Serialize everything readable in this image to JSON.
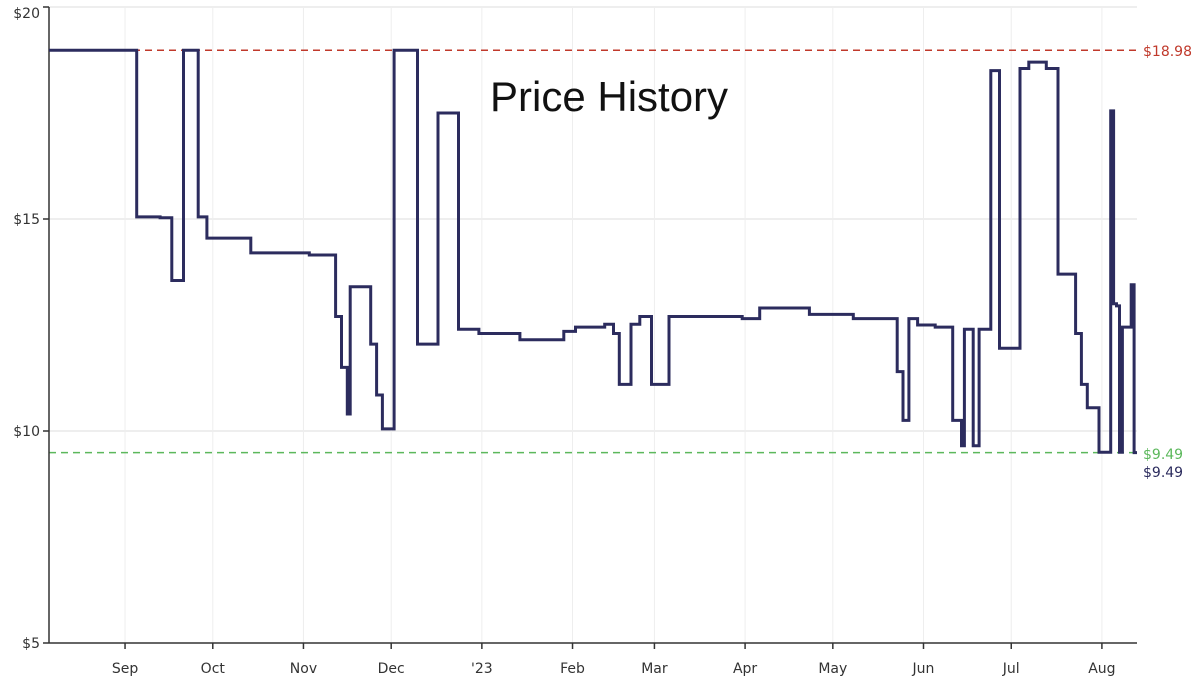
{
  "chart_data": {
    "type": "line",
    "title": "Price History",
    "step": true,
    "ylim": [
      5,
      20
    ],
    "xlim": [
      "2022-08-06",
      "2023-08-13"
    ],
    "y_ticks": [
      {
        "value": 5,
        "label": "$5"
      },
      {
        "value": 10,
        "label": "$10"
      },
      {
        "value": 15,
        "label": "$15"
      },
      {
        "value": 20,
        "label": "$20"
      }
    ],
    "x_ticks": [
      {
        "date": "2022-09-01",
        "label": "Sep"
      },
      {
        "date": "2022-10-01",
        "label": "Oct"
      },
      {
        "date": "2022-11-01",
        "label": "Nov"
      },
      {
        "date": "2022-12-01",
        "label": "Dec"
      },
      {
        "date": "2023-01-01",
        "label": "'23"
      },
      {
        "date": "2023-02-01",
        "label": "Feb"
      },
      {
        "date": "2023-03-01",
        "label": "Mar"
      },
      {
        "date": "2023-04-01",
        "label": "Apr"
      },
      {
        "date": "2023-05-01",
        "label": "May"
      },
      {
        "date": "2023-06-01",
        "label": "Jun"
      },
      {
        "date": "2023-07-01",
        "label": "Jul"
      },
      {
        "date": "2023-08-01",
        "label": "Aug"
      }
    ],
    "grid": true,
    "reference_lines": [
      {
        "value": 18.98,
        "label": "$18.98",
        "color": "#c0392b"
      },
      {
        "value": 9.49,
        "label": "$9.49",
        "color": "#5cb85c"
      }
    ],
    "current_label": {
      "value": 9.49,
      "label": "$9.49",
      "color": "#2c2c5e"
    },
    "series": [
      {
        "color": "#2c2c5e",
        "points": [
          [
            "2022-08-06",
            18.98
          ],
          [
            "2022-09-05",
            15.05
          ],
          [
            "2022-09-13",
            15.03
          ],
          [
            "2022-09-17",
            13.55
          ],
          [
            "2022-09-21",
            18.98
          ],
          [
            "2022-09-26",
            15.05
          ],
          [
            "2022-09-29",
            14.55
          ],
          [
            "2022-10-14",
            14.2
          ],
          [
            "2022-11-03",
            14.15
          ],
          [
            "2022-11-12",
            12.7
          ],
          [
            "2022-11-14",
            11.5
          ],
          [
            "2022-11-16",
            10.4
          ],
          [
            "2022-11-17",
            13.4
          ],
          [
            "2022-11-24",
            12.05
          ],
          [
            "2022-11-26",
            10.85
          ],
          [
            "2022-11-28",
            10.05
          ],
          [
            "2022-12-02",
            18.98
          ],
          [
            "2022-12-10",
            12.05
          ],
          [
            "2022-12-17",
            17.5
          ],
          [
            "2022-12-24",
            12.4
          ],
          [
            "2022-12-31",
            12.3
          ],
          [
            "2023-01-14",
            12.15
          ],
          [
            "2023-01-29",
            12.35
          ],
          [
            "2023-02-02",
            12.45
          ],
          [
            "2023-02-12",
            12.52
          ],
          [
            "2023-02-15",
            12.3
          ],
          [
            "2023-02-17",
            11.1
          ],
          [
            "2023-02-21",
            12.52
          ],
          [
            "2023-02-24",
            12.7
          ],
          [
            "2023-02-28",
            11.1
          ],
          [
            "2023-03-06",
            12.7
          ],
          [
            "2023-03-31",
            12.65
          ],
          [
            "2023-04-06",
            12.9
          ],
          [
            "2023-04-23",
            12.75
          ],
          [
            "2023-05-08",
            12.65
          ],
          [
            "2023-05-23",
            11.4
          ],
          [
            "2023-05-25",
            10.25
          ],
          [
            "2023-05-27",
            12.65
          ],
          [
            "2023-05-30",
            12.5
          ],
          [
            "2023-06-05",
            12.45
          ],
          [
            "2023-06-11",
            10.25
          ],
          [
            "2023-06-14",
            9.65
          ],
          [
            "2023-06-15",
            12.4
          ],
          [
            "2023-06-18",
            9.65
          ],
          [
            "2023-06-20",
            12.4
          ],
          [
            "2023-06-24",
            18.5
          ],
          [
            "2023-06-27",
            11.95
          ],
          [
            "2023-07-04",
            18.55
          ],
          [
            "2023-07-07",
            18.7
          ],
          [
            "2023-07-13",
            18.55
          ],
          [
            "2023-07-17",
            13.7
          ],
          [
            "2023-07-23",
            12.3
          ],
          [
            "2023-07-25",
            11.1
          ],
          [
            "2023-07-27",
            10.55
          ],
          [
            "2023-07-31",
            9.5
          ],
          [
            "2023-08-04",
            17.55
          ],
          [
            "2023-08-05",
            13.0
          ],
          [
            "2023-08-06",
            12.95
          ],
          [
            "2023-08-07",
            9.5
          ],
          [
            "2023-08-08",
            12.45
          ],
          [
            "2023-08-11",
            13.45
          ],
          [
            "2023-08-12",
            9.49
          ]
        ]
      }
    ]
  }
}
